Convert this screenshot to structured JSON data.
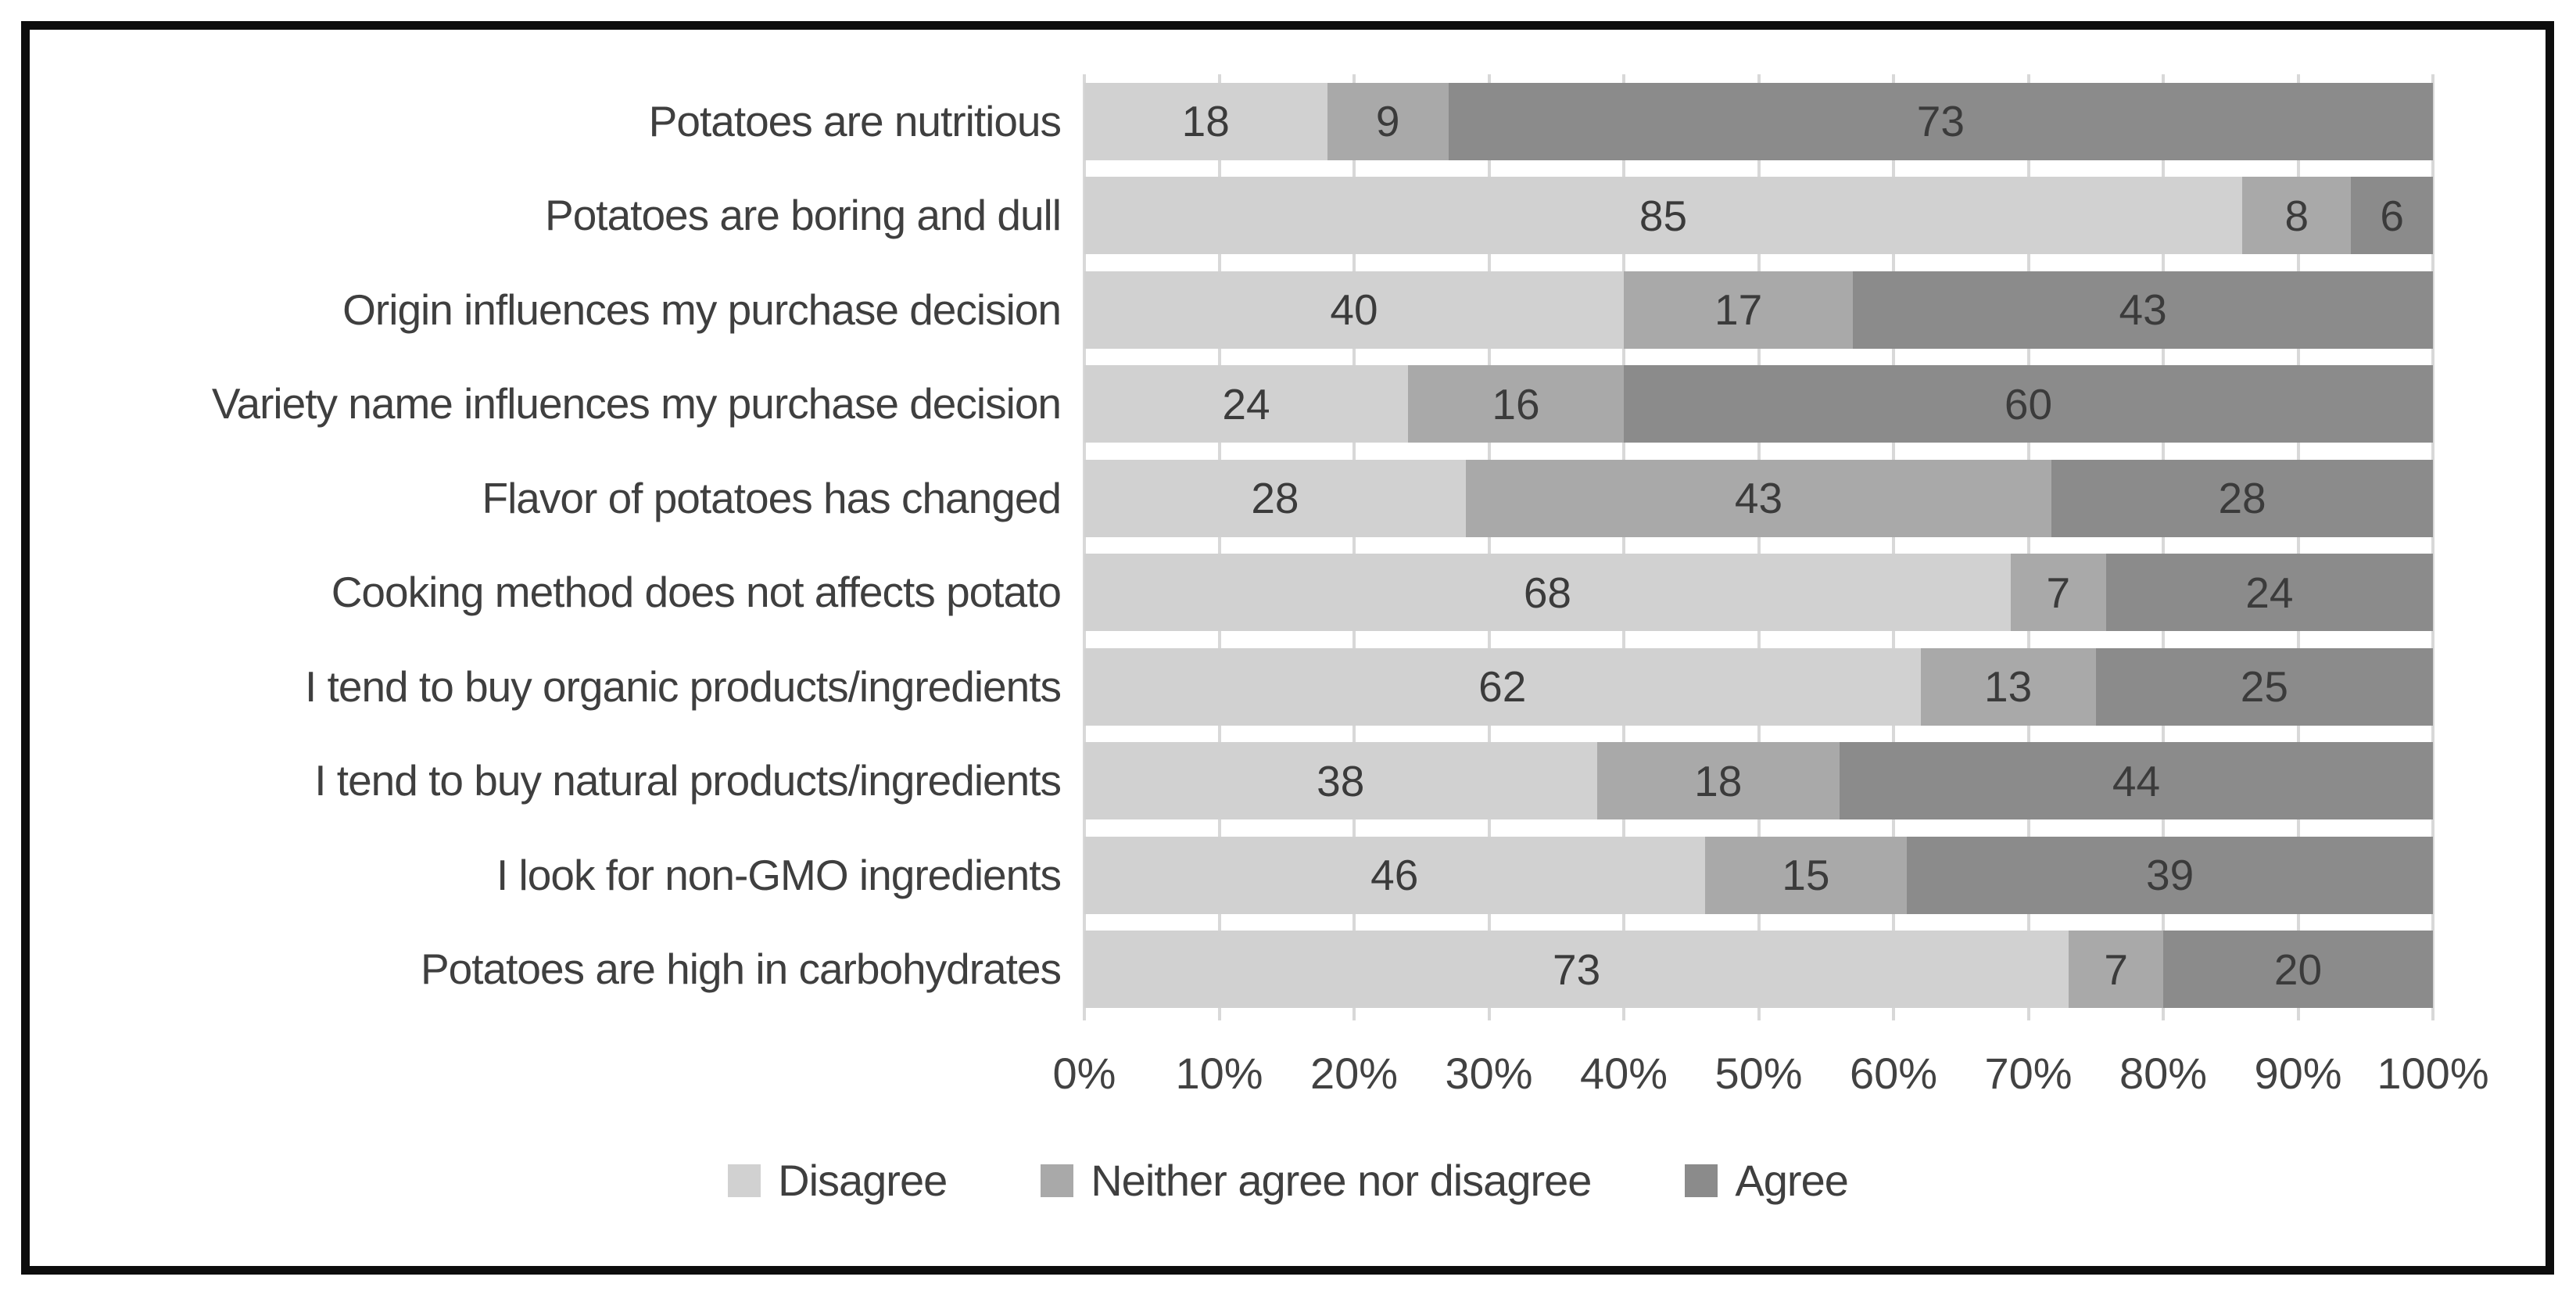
{
  "chart_data": {
    "type": "bar",
    "variant": "horizontal_100pct_stacked",
    "title": "",
    "xlabel": "",
    "ylabel": "",
    "xlim": [
      0,
      100
    ],
    "grid": "vertical gridlines every 10%",
    "legend_position": "bottom",
    "categories": [
      "Potatoes are nutritious",
      "Potatoes are boring and dull",
      "Origin influences my purchase decision",
      "Variety name influences my purchase decision",
      "Flavor of potatoes has changed",
      "Cooking method does not affects potato",
      "I tend to buy organic products/ingredients",
      "I tend to buy natural products/ingredients",
      "I look for non-GMO ingredients",
      "Potatoes are high in carbohydrates"
    ],
    "series": [
      {
        "name": "Disagree",
        "color": "#d1d1d1",
        "values": [
          18,
          85,
          40,
          24,
          28,
          68,
          62,
          38,
          46,
          73
        ]
      },
      {
        "name": "Neither agree nor disagree",
        "color": "#a9a9a9",
        "values": [
          9,
          8,
          17,
          16,
          43,
          7,
          13,
          18,
          15,
          7
        ]
      },
      {
        "name": "Agree",
        "color": "#8b8b8b",
        "values": [
          73,
          6,
          43,
          60,
          28,
          24,
          25,
          44,
          39,
          20
        ]
      }
    ],
    "x_tick_labels": [
      "0%",
      "10%",
      "20%",
      "30%",
      "40%",
      "50%",
      "60%",
      "70%",
      "80%",
      "90%",
      "100%"
    ],
    "colors": {
      "bar_label_text": "#3b3b3b",
      "category_text": "#3f3f3f",
      "axis_text": "#424242",
      "gridline": "#d8d8d8",
      "frame_border": "#0d0d0d",
      "background": "#ffffff"
    }
  }
}
